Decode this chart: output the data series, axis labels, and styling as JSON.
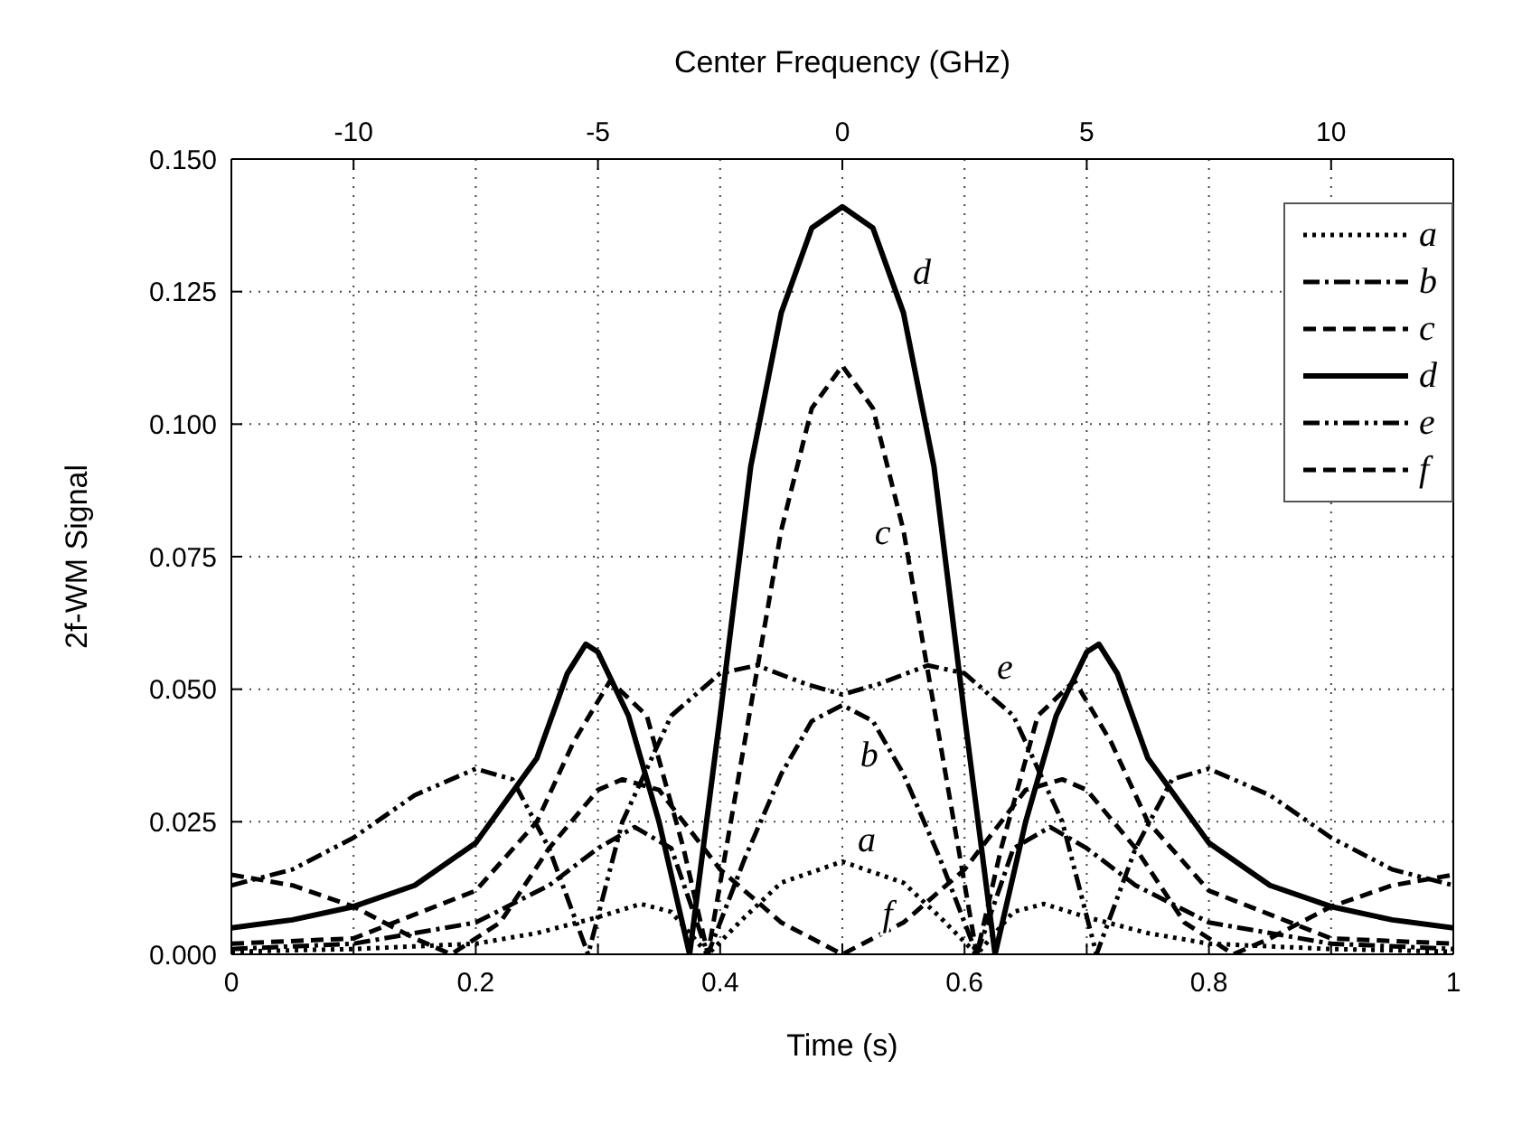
{
  "chart_data": {
    "type": "line",
    "xlabel": "Time (s)",
    "ylabel": "2f-WM Signal",
    "x2label": "Center Frequency (GHz)",
    "xlim": [
      0,
      1
    ],
    "xticks": [
      0,
      {
        "value": 0.1,
        "label": null
      },
      0.2,
      {
        "value": 0.3,
        "label": null
      },
      0.4,
      {
        "value": 0.5,
        "label": null
      },
      0.6,
      {
        "value": 0.7,
        "label": null
      },
      0.8,
      {
        "value": 0.9,
        "label": null
      },
      1
    ],
    "x2lim": [
      -12.5,
      12.5
    ],
    "x2ticks": [
      -10,
      -5,
      0,
      5,
      10
    ],
    "ylim": [
      0,
      0.15
    ],
    "yticks": [
      {
        "value": 0,
        "label": "0.000"
      },
      {
        "value": 0.025,
        "label": "0.025"
      },
      {
        "value": 0.05,
        "label": "0.050"
      },
      {
        "value": 0.075,
        "label": "0.075"
      },
      {
        "value": 0.1,
        "label": "0.100"
      },
      {
        "value": 0.125,
        "label": "0.125"
      },
      {
        "value": 0.15,
        "label": "0.150"
      }
    ],
    "grid": true,
    "legend": "top right",
    "marker": "none",
    "series": [
      {
        "name": "a",
        "color": "#000000",
        "line_style": "dotted",
        "x": [
          0,
          0.1,
          0.2,
          0.25,
          0.3,
          0.335,
          0.36,
          0.39,
          0.42,
          0.45,
          0.5,
          0.55,
          0.58,
          0.61,
          0.64,
          0.665,
          0.7,
          0.75,
          0.8,
          0.9,
          1
        ],
        "values": [
          0.0005,
          0.001,
          0.002,
          0.004,
          0.007,
          0.0095,
          0.008,
          0,
          0.007,
          0.0135,
          0.0175,
          0.0135,
          0.007,
          0,
          0.008,
          0.0095,
          0.007,
          0.004,
          0.002,
          0.001,
          0.0005
        ]
      },
      {
        "name": "b",
        "color": "#000000",
        "line_style": "dashdot",
        "x": [
          0,
          0.1,
          0.2,
          0.26,
          0.3,
          0.33,
          0.36,
          0.39,
          0.42,
          0.45,
          0.475,
          0.5,
          0.525,
          0.55,
          0.58,
          0.61,
          0.64,
          0.67,
          0.7,
          0.74,
          0.8,
          0.9,
          1
        ],
        "values": [
          0.001,
          0.002,
          0.006,
          0.013,
          0.02,
          0.024,
          0.02,
          0,
          0.018,
          0.034,
          0.044,
          0.047,
          0.044,
          0.034,
          0.018,
          0,
          0.02,
          0.024,
          0.02,
          0.013,
          0.006,
          0.002,
          0.001
        ]
      },
      {
        "name": "c",
        "color": "#000000",
        "line_style": "dashed",
        "x": [
          0,
          0.1,
          0.2,
          0.25,
          0.28,
          0.31,
          0.34,
          0.37,
          0.39,
          0.42,
          0.45,
          0.475,
          0.5,
          0.525,
          0.55,
          0.58,
          0.61,
          0.63,
          0.66,
          0.69,
          0.72,
          0.75,
          0.8,
          0.9,
          1
        ],
        "values": [
          0.002,
          0.003,
          0.012,
          0.025,
          0.04,
          0.0516,
          0.045,
          0.02,
          0,
          0.04,
          0.08,
          0.103,
          0.111,
          0.103,
          0.08,
          0.04,
          0,
          0.02,
          0.045,
          0.0516,
          0.04,
          0.025,
          0.012,
          0.003,
          0.002
        ]
      },
      {
        "name": "d",
        "color": "#000000",
        "line_style": "solid",
        "x": [
          0,
          0.05,
          0.1,
          0.15,
          0.2,
          0.25,
          0.275,
          0.29,
          0.3,
          0.325,
          0.35,
          0.375,
          0.4,
          0.425,
          0.45,
          0.475,
          0.5,
          0.525,
          0.55,
          0.575,
          0.6,
          0.625,
          0.65,
          0.675,
          0.7,
          0.71,
          0.725,
          0.75,
          0.8,
          0.85,
          0.9,
          0.95,
          1
        ],
        "values": [
          0.005,
          0.0065,
          0.009,
          0.013,
          0.021,
          0.037,
          0.053,
          0.0585,
          0.057,
          0.045,
          0.025,
          0,
          0.045,
          0.092,
          0.121,
          0.137,
          0.141,
          0.137,
          0.121,
          0.092,
          0.045,
          0,
          0.025,
          0.045,
          0.057,
          0.0585,
          0.053,
          0.037,
          0.021,
          0.013,
          0.009,
          0.0065,
          0.005
        ]
      },
      {
        "name": "e",
        "color": "#000000",
        "line_style": "dashdotdot",
        "x": [
          0,
          0.05,
          0.1,
          0.15,
          0.2,
          0.23,
          0.26,
          0.292,
          0.32,
          0.36,
          0.4,
          0.43,
          0.47,
          0.5,
          0.53,
          0.57,
          0.6,
          0.64,
          0.68,
          0.708,
          0.74,
          0.77,
          0.8,
          0.85,
          0.9,
          0.95,
          1
        ],
        "values": [
          0.013,
          0.016,
          0.022,
          0.03,
          0.035,
          0.033,
          0.02,
          0,
          0.025,
          0.045,
          0.053,
          0.0545,
          0.051,
          0.049,
          0.051,
          0.0545,
          0.053,
          0.045,
          0.025,
          0,
          0.02,
          0.033,
          0.035,
          0.03,
          0.022,
          0.016,
          0.013
        ]
      },
      {
        "name": "f",
        "color": "#000000",
        "line_style": "dashed",
        "x": [
          0,
          0.05,
          0.1,
          0.15,
          0.18,
          0.22,
          0.26,
          0.3,
          0.32,
          0.35,
          0.4,
          0.45,
          0.5,
          0.55,
          0.6,
          0.65,
          0.68,
          0.7,
          0.74,
          0.78,
          0.82,
          0.85,
          0.9,
          0.95,
          1
        ],
        "values": [
          0.015,
          0.013,
          0.009,
          0.003,
          0,
          0.006,
          0.02,
          0.031,
          0.033,
          0.031,
          0.016,
          0.006,
          0,
          0.006,
          0.016,
          0.031,
          0.033,
          0.031,
          0.02,
          0.006,
          0,
          0.003,
          0.009,
          0.013,
          0.015
        ]
      }
    ],
    "annotations": [
      "d",
      "c",
      "e",
      "b",
      "a",
      "f"
    ]
  }
}
